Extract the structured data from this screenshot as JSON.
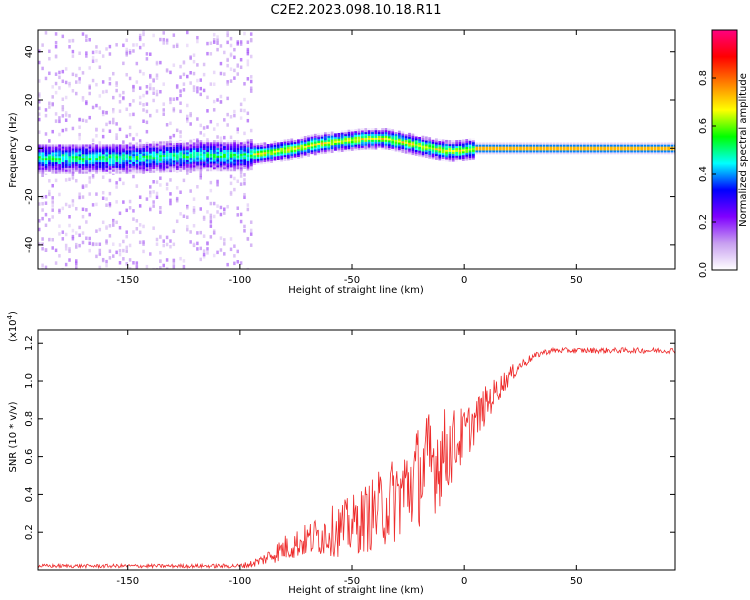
{
  "title": "C2E2.2023.098.10.18.R11",
  "chart_data": [
    {
      "type": "heatmap",
      "title": "",
      "xlabel": "Height of straight line (km)",
      "ylabel": "Frequency (Hz)",
      "xlim": [
        -190,
        94
      ],
      "ylim": [
        -50,
        49
      ],
      "xticks": [
        -150,
        -100,
        -50,
        0,
        50
      ],
      "xtick_labels": [
        "-150",
        "-100",
        "-50",
        "0",
        "50"
      ],
      "yticks": [
        -40,
        -20,
        0,
        20,
        40
      ],
      "ytick_labels": [
        "-40",
        "-20",
        "0",
        "20",
        "40"
      ],
      "grid": false,
      "description": "Spectral amplitude vs height; noisy scatter below -95 km, drifting ridge near 0 Hz, steady line at 0 Hz above 5 km",
      "ridge_centre_hz": {
        "x": [
          -190,
          -150,
          -120,
          -100,
          -90,
          -75,
          -65,
          -55,
          -45,
          -35,
          -25,
          -15,
          -8,
          -3,
          5,
          94
        ],
        "y": [
          -4,
          -4,
          -3,
          -3,
          -2,
          0,
          2,
          3,
          4,
          4,
          2,
          0,
          -1,
          -1,
          0,
          0
        ]
      },
      "colorbar": {
        "label": "Normalized spectral amplitude",
        "range": [
          0,
          1
        ],
        "ticks": [
          0.0,
          0.2,
          0.4,
          0.6,
          0.8
        ],
        "tick_labels": [
          "0.0",
          "0.2",
          "0.4",
          "0.6",
          "0.8"
        ],
        "colors": [
          "#ffffff",
          "#c8a0f0",
          "#8000ff",
          "#0000ff",
          "#00ffff",
          "#00ff00",
          "#ffff00",
          "#ff8000",
          "#ff0000",
          "#ff0080"
        ]
      }
    },
    {
      "type": "line",
      "title": "",
      "xlabel": "Height of straight line (km)",
      "ylabel": "SNR (10 * v/v)",
      "y_multiplier_label": "(x10",
      "y_multiplier_exp": "4",
      "y_multiplier_close": ")",
      "xlim": [
        -190,
        94
      ],
      "ylim": [
        0,
        1.27
      ],
      "xticks": [
        -150,
        -100,
        -50,
        0,
        50
      ],
      "xtick_labels": [
        "-150",
        "-100",
        "-50",
        "0",
        "50"
      ],
      "yticks": [
        0.2,
        0.4,
        0.6,
        0.8,
        1.0,
        1.2
      ],
      "ytick_labels": [
        "0.2",
        "0.4",
        "0.6",
        "0.8",
        "1.0",
        "1.2"
      ],
      "grid": false,
      "series": [
        {
          "name": "SNR",
          "color": "#ee2c2c",
          "x": [
            -190,
            -150,
            -120,
            -100,
            -95,
            -90,
            -85,
            -80,
            -75,
            -70,
            -65,
            -60,
            -55,
            -50,
            -45,
            -40,
            -35,
            -30,
            -25,
            -20,
            -15,
            -10,
            -5,
            0,
            5,
            10,
            15,
            20,
            25,
            30,
            35,
            40,
            45,
            50,
            60,
            70,
            80,
            94
          ],
          "y": [
            0.02,
            0.02,
            0.02,
            0.02,
            0.03,
            0.05,
            0.08,
            0.11,
            0.13,
            0.15,
            0.17,
            0.19,
            0.2,
            0.22,
            0.25,
            0.28,
            0.32,
            0.36,
            0.42,
            0.48,
            0.53,
            0.58,
            0.64,
            0.7,
            0.78,
            0.87,
            0.95,
            1.02,
            1.08,
            1.12,
            1.15,
            1.16,
            1.16,
            1.16,
            1.16,
            1.16,
            1.16,
            1.16
          ],
          "noise": [
            0.01,
            0.01,
            0.01,
            0.012,
            0.02,
            0.03,
            0.05,
            0.07,
            0.08,
            0.09,
            0.11,
            0.13,
            0.15,
            0.16,
            0.18,
            0.2,
            0.22,
            0.24,
            0.26,
            0.28,
            0.3,
            0.26,
            0.2,
            0.15,
            0.12,
            0.1,
            0.07,
            0.05,
            0.03,
            0.02,
            0.015,
            0.015,
            0.015,
            0.015,
            0.015,
            0.015,
            0.015,
            0.015
          ]
        }
      ]
    }
  ]
}
